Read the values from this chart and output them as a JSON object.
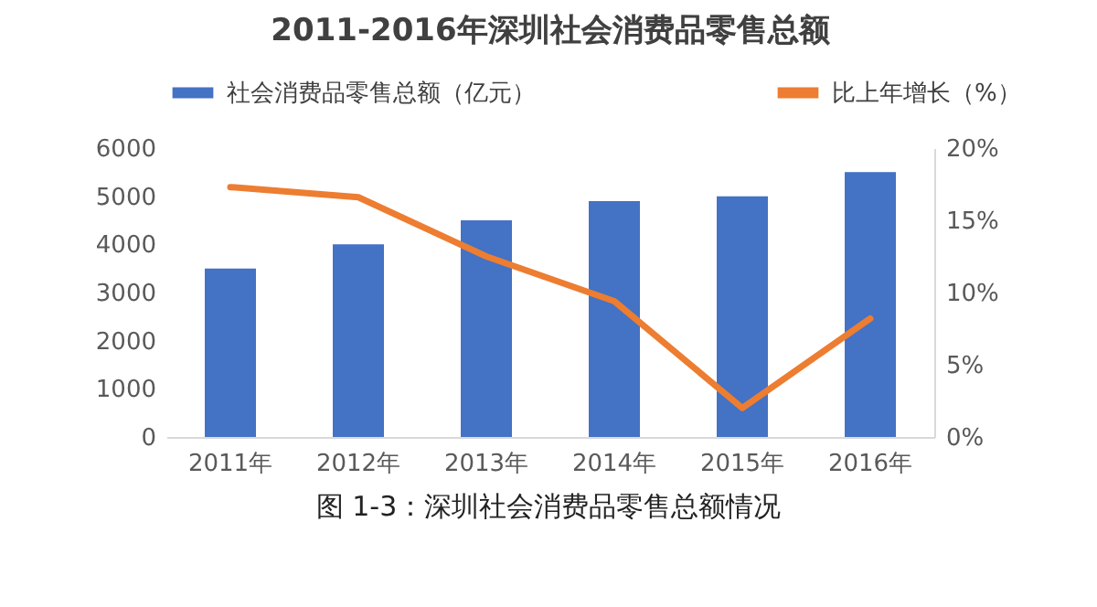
{
  "chart_data": {
    "type": "bar",
    "title": "2011-2016年深圳社会消费品零售总额",
    "categories": [
      "2011年",
      "2012年",
      "2013年",
      "2014年",
      "2015年",
      "2016年"
    ],
    "series": [
      {
        "name": "社会消费品零售总额（亿元）",
        "color": "#4472c4",
        "values": [
          3500,
          4000,
          4500,
          4900,
          5000,
          5500
        ]
      },
      {
        "name": "比上年增长（%）",
        "type": "line",
        "axis": "y2",
        "color": "#ed7d31",
        "values": [
          17.3,
          16.6,
          12.5,
          9.4,
          2.0,
          8.2
        ]
      }
    ],
    "ylim": [
      0,
      6000
    ],
    "yticks": [
      0,
      1000,
      2000,
      3000,
      4000,
      5000,
      6000
    ],
    "y2lim": [
      0,
      20
    ],
    "y2ticks": [
      {
        "value": 0,
        "label": "0%"
      },
      {
        "value": 5,
        "label": "5%"
      },
      {
        "value": 10,
        "label": "10%"
      },
      {
        "value": 15,
        "label": "15%"
      },
      {
        "value": 20,
        "label": "20%"
      }
    ],
    "grid": false,
    "legend": "top",
    "marker": "none",
    "line_style": "solid",
    "annotations": [
      "图 1-3：深圳社会消费品零售总额情况"
    ]
  }
}
